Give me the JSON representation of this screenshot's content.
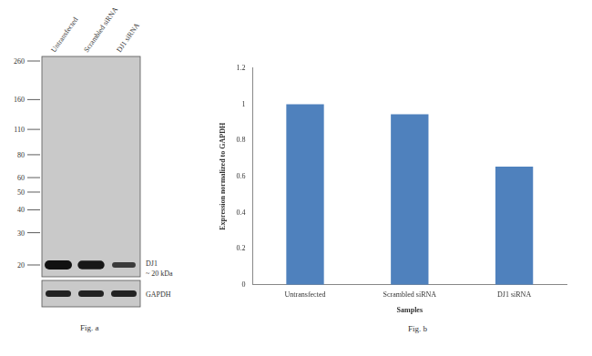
{
  "blot": {
    "lanes": [
      "Untransfected",
      "Scrambled siRNA",
      "DJ1 siRNA"
    ],
    "markers": [
      260,
      160,
      110,
      80,
      60,
      50,
      40,
      30,
      20
    ],
    "bands": [
      {
        "label": "DJ1",
        "size_label": "~ 20 kDa",
        "kda": 20
      },
      {
        "label": "GAPDH"
      }
    ],
    "caption": "Fig. a"
  },
  "chart_data": {
    "type": "bar",
    "categories": [
      "Untransfected",
      "Scrambled siRNA",
      "DJ1 siRNA"
    ],
    "values": [
      1.0,
      0.945,
      0.655
    ],
    "color": "#4f81bd",
    "ylim": [
      0,
      1.2
    ],
    "yticks": [
      0,
      0.2,
      0.4,
      0.6,
      0.8,
      1,
      1.2
    ],
    "x_label": "Samples",
    "y_label": "Expression normalized to GAPDH",
    "grid": false,
    "caption": "Fig. b"
  }
}
